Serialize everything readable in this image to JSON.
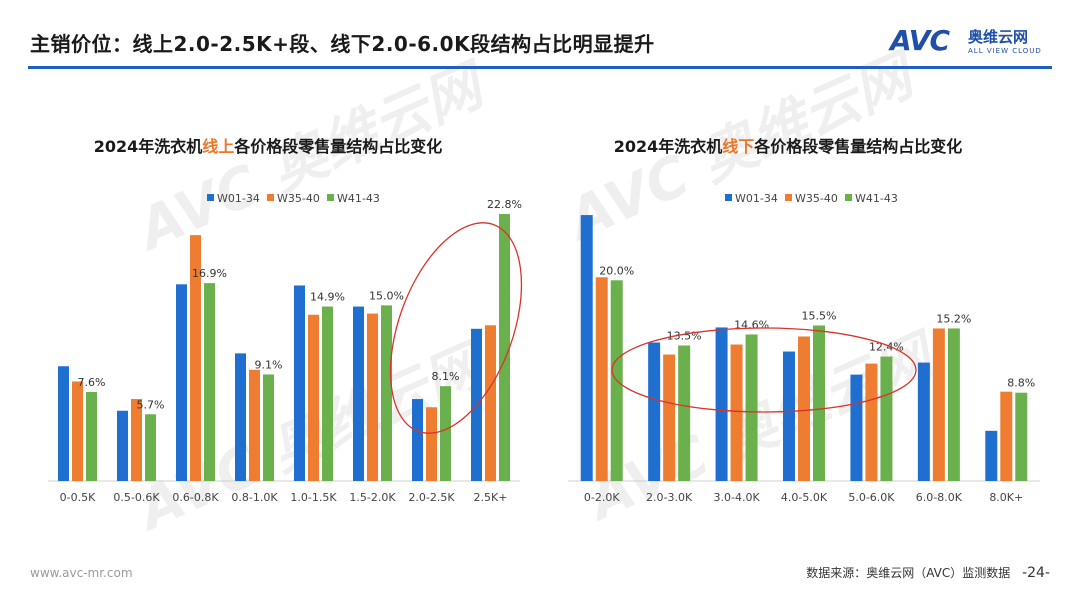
{
  "header": {
    "title": "主销价位：线上2.0-2.5K+段、线下2.0-6.0K段结构占比明显提升"
  },
  "brand": {
    "logo_text": "AVC",
    "name_cn": "奥维云网",
    "name_en": "ALL VIEW CLOUD",
    "color": "#1f4fa8"
  },
  "footer": {
    "url": "www.avc-mr.com",
    "source": "数据来源：奥维云网（AVC）监测数据",
    "page": "-24-"
  },
  "colors": {
    "W01-34": "#1f6fd1",
    "W35-40": "#ee7d31",
    "W41-43": "#6ab04c",
    "highlight": "#e8792b",
    "ellipse": "#d9342b",
    "header_line": "#1f5fbf"
  },
  "chart_data": [
    {
      "type": "bar",
      "title_parts": [
        "2024年洗衣机",
        "线上",
        "各价格段零售量结构占比变化"
      ],
      "categories": [
        "0-0.5K",
        "0.5-0.6K",
        "0.6-0.8K",
        "0.8-1.0K",
        "1.0-1.5K",
        "1.5-2.0K",
        "2.0-2.5K",
        "2.5K+"
      ],
      "series": [
        {
          "name": "W01-34",
          "values": [
            9.8,
            6.0,
            16.8,
            10.9,
            16.7,
            14.9,
            7.0,
            13.0
          ]
        },
        {
          "name": "W35-40",
          "values": [
            8.5,
            7.0,
            21.0,
            9.5,
            14.2,
            14.3,
            6.3,
            13.3
          ]
        },
        {
          "name": "W41-43",
          "values": [
            7.6,
            5.7,
            16.9,
            9.1,
            14.9,
            15.0,
            8.1,
            22.8
          ]
        }
      ],
      "data_labels_series": "W41-43",
      "ylim": [
        0,
        24
      ],
      "legend": "top-center",
      "annotation": "ellipse around 2.0-2.5K and 2.5K+"
    },
    {
      "type": "bar",
      "title_parts": [
        "2024年洗衣机",
        "线下",
        "各价格段零售量结构占比变化"
      ],
      "categories": [
        "0-2.0K",
        "2.0-3.0K",
        "3.0-4.0K",
        "4.0-5.0K",
        "5.0-6.0K",
        "6.0-8.0K",
        "8.0K+"
      ],
      "series": [
        {
          "name": "W01-34",
          "values": [
            26.5,
            13.8,
            15.3,
            12.9,
            10.6,
            11.8,
            5.0
          ]
        },
        {
          "name": "W35-40",
          "values": [
            20.3,
            12.6,
            13.6,
            14.4,
            11.7,
            15.2,
            8.9
          ]
        },
        {
          "name": "W41-43",
          "values": [
            20.0,
            13.5,
            14.6,
            15.5,
            12.4,
            15.2,
            8.8
          ]
        }
      ],
      "data_labels_series": "W41-43",
      "ylim": [
        0,
        28
      ],
      "legend": "top-center",
      "annotation": "ellipse around 2.0-3.0K to 5.0-6.0K"
    }
  ]
}
